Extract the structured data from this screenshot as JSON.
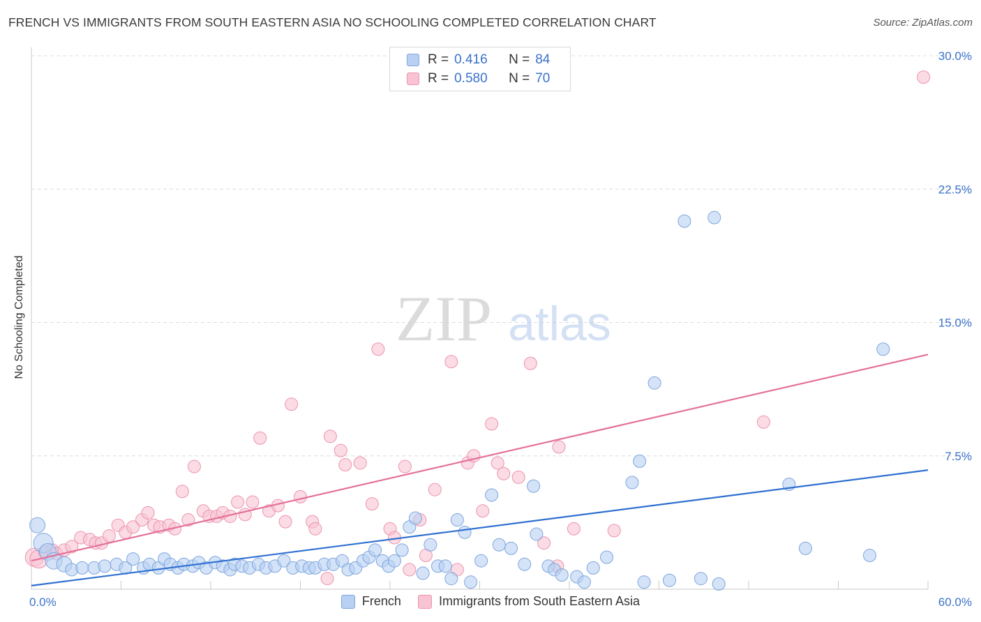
{
  "header": {
    "title": "FRENCH VS IMMIGRANTS FROM SOUTH EASTERN ASIA NO SCHOOLING COMPLETED CORRELATION CHART",
    "source": "Source: ZipAtlas.com"
  },
  "watermark": {
    "zip": "ZIP",
    "atlas": "atlas"
  },
  "legend": {
    "rows": [
      {
        "r_label": "R =",
        "r_value": "0.416",
        "n_label": "N =",
        "n_value": "84"
      },
      {
        "r_label": "R =",
        "r_value": "0.580",
        "n_label": "N =",
        "n_value": "70"
      }
    ]
  },
  "bottom_legend": {
    "series1": "French",
    "series2": "Immigrants from South Eastern Asia"
  },
  "colors": {
    "blue_fill": "#b8d0f2",
    "blue_stroke": "#7ea6de",
    "blue_line": "#2e6fd1",
    "pink_fill": "#f8c3d2",
    "pink_stroke": "#ec93ae",
    "pink_line": "#e4709a",
    "grid": "#dcdcdc",
    "tick_text": "#3a72c9"
  },
  "chart_data": {
    "type": "scatter",
    "title": "FRENCH VS IMMIGRANTS FROM SOUTH EASTERN ASIA NO SCHOOLING COMPLETED CORRELATION CHART",
    "xlabel": "",
    "ylabel": "No Schooling Completed",
    "xlim": [
      0,
      60
    ],
    "ylim": [
      0,
      30
    ],
    "x_tick_labels": [
      "0.0%",
      "60.0%"
    ],
    "y_ticks": [
      7.5,
      15.0,
      22.5,
      30.0
    ],
    "y_tick_labels": [
      "7.5%",
      "15.0%",
      "22.5%",
      "30.0%"
    ],
    "grid": true,
    "series": [
      {
        "name": "French",
        "r": 0.416,
        "n": 84,
        "trend": {
          "x": [
            0,
            60
          ],
          "y": [
            0.2,
            6.7
          ]
        },
        "points": [
          [
            0.4,
            3.6,
            11
          ],
          [
            0.8,
            2.6,
            14
          ],
          [
            1.1,
            2.1,
            12
          ],
          [
            1.5,
            1.6,
            12
          ],
          [
            2.2,
            1.4,
            11
          ],
          [
            2.7,
            1.1,
            9
          ],
          [
            3.4,
            1.2,
            9
          ],
          [
            4.2,
            1.2,
            9
          ],
          [
            4.9,
            1.3,
            9
          ],
          [
            5.7,
            1.4,
            9
          ],
          [
            6.3,
            1.2,
            9
          ],
          [
            6.8,
            1.7,
            9
          ],
          [
            7.5,
            1.2,
            9
          ],
          [
            7.9,
            1.4,
            9
          ],
          [
            8.5,
            1.2,
            9
          ],
          [
            8.9,
            1.7,
            9
          ],
          [
            9.3,
            1.4,
            9
          ],
          [
            9.8,
            1.2,
            9
          ],
          [
            10.2,
            1.4,
            9
          ],
          [
            10.8,
            1.3,
            9
          ],
          [
            11.2,
            1.5,
            9
          ],
          [
            11.7,
            1.2,
            9
          ],
          [
            12.3,
            1.5,
            9
          ],
          [
            12.8,
            1.3,
            9
          ],
          [
            13.3,
            1.1,
            9
          ],
          [
            13.6,
            1.4,
            9
          ],
          [
            14.1,
            1.3,
            9
          ],
          [
            14.6,
            1.2,
            9
          ],
          [
            15.2,
            1.4,
            9
          ],
          [
            15.7,
            1.2,
            9
          ],
          [
            16.3,
            1.3,
            9
          ],
          [
            16.9,
            1.6,
            9
          ],
          [
            17.5,
            1.2,
            9
          ],
          [
            18.1,
            1.3,
            9
          ],
          [
            18.6,
            1.2,
            9
          ],
          [
            19.0,
            1.2,
            9
          ],
          [
            19.6,
            1.4,
            9
          ],
          [
            20.2,
            1.4,
            9
          ],
          [
            20.8,
            1.6,
            9
          ],
          [
            21.2,
            1.1,
            9
          ],
          [
            21.7,
            1.2,
            9
          ],
          [
            22.2,
            1.6,
            9
          ],
          [
            22.6,
            1.8,
            9
          ],
          [
            23.0,
            2.2,
            9
          ],
          [
            23.5,
            1.6,
            9
          ],
          [
            23.9,
            1.3,
            9
          ],
          [
            24.3,
            1.6,
            9
          ],
          [
            24.8,
            2.2,
            9
          ],
          [
            25.3,
            3.5,
            9
          ],
          [
            25.7,
            4.0,
            9
          ],
          [
            26.2,
            0.9,
            9
          ],
          [
            26.7,
            2.5,
            9
          ],
          [
            27.2,
            1.3,
            9
          ],
          [
            27.7,
            1.3,
            9
          ],
          [
            28.1,
            0.6,
            9
          ],
          [
            28.5,
            3.9,
            9
          ],
          [
            29.0,
            3.2,
            9
          ],
          [
            29.4,
            0.4,
            9
          ],
          [
            30.1,
            1.6,
            9
          ],
          [
            30.8,
            5.3,
            9
          ],
          [
            31.3,
            2.5,
            9
          ],
          [
            32.1,
            2.3,
            9
          ],
          [
            33.0,
            1.4,
            9
          ],
          [
            33.6,
            5.8,
            9
          ],
          [
            33.8,
            3.1,
            9
          ],
          [
            34.6,
            1.3,
            9
          ],
          [
            35.0,
            1.1,
            9
          ],
          [
            35.5,
            0.8,
            9
          ],
          [
            36.5,
            0.7,
            9
          ],
          [
            37.0,
            0.4,
            9
          ],
          [
            37.6,
            1.2,
            9
          ],
          [
            41.7,
            11.6,
            9
          ],
          [
            38.5,
            1.8,
            9
          ],
          [
            40.2,
            6.0,
            9
          ],
          [
            40.7,
            7.2,
            9
          ],
          [
            41.0,
            0.4,
            9
          ],
          [
            42.7,
            0.5,
            9
          ],
          [
            43.7,
            20.7,
            9
          ],
          [
            44.8,
            0.6,
            9
          ],
          [
            45.7,
            20.9,
            9
          ],
          [
            46.0,
            0.3,
            9
          ],
          [
            50.7,
            5.9,
            9
          ],
          [
            51.8,
            2.3,
            9
          ],
          [
            56.1,
            1.9,
            9
          ],
          [
            57.0,
            13.5,
            9
          ]
        ]
      },
      {
        "name": "Immigrants from South Eastern Asia",
        "r": 0.58,
        "n": 70,
        "trend": {
          "x": [
            0,
            60
          ],
          "y": [
            1.6,
            13.2
          ]
        },
        "points": [
          [
            0.2,
            1.8,
            13
          ],
          [
            0.5,
            1.7,
            13
          ],
          [
            0.9,
            2.1,
            9
          ],
          [
            1.4,
            2.2,
            9
          ],
          [
            1.7,
            2.0,
            9
          ],
          [
            2.2,
            2.2,
            9
          ],
          [
            2.7,
            2.4,
            9
          ],
          [
            3.3,
            2.9,
            9
          ],
          [
            3.9,
            2.8,
            9
          ],
          [
            4.3,
            2.6,
            9
          ],
          [
            4.7,
            2.6,
            9
          ],
          [
            5.2,
            3.0,
            9
          ],
          [
            5.8,
            3.6,
            9
          ],
          [
            6.3,
            3.2,
            9
          ],
          [
            6.8,
            3.5,
            9
          ],
          [
            7.4,
            3.9,
            9
          ],
          [
            7.8,
            4.3,
            9
          ],
          [
            8.2,
            3.6,
            9
          ],
          [
            8.6,
            3.5,
            9
          ],
          [
            9.2,
            3.6,
            9
          ],
          [
            9.6,
            3.4,
            9
          ],
          [
            10.1,
            5.5,
            9
          ],
          [
            10.5,
            3.9,
            9
          ],
          [
            10.9,
            6.9,
            9
          ],
          [
            11.5,
            4.4,
            9
          ],
          [
            11.9,
            4.1,
            9
          ],
          [
            12.4,
            4.1,
            9
          ],
          [
            12.8,
            4.3,
            9
          ],
          [
            13.3,
            4.1,
            9
          ],
          [
            13.8,
            4.9,
            9
          ],
          [
            14.3,
            4.2,
            9
          ],
          [
            14.8,
            4.9,
            9
          ],
          [
            15.3,
            8.5,
            9
          ],
          [
            15.9,
            4.4,
            9
          ],
          [
            16.5,
            4.7,
            9
          ],
          [
            17.0,
            3.8,
            9
          ],
          [
            17.4,
            10.4,
            9
          ],
          [
            18.0,
            5.2,
            9
          ],
          [
            18.8,
            3.8,
            9
          ],
          [
            19.0,
            3.4,
            9
          ],
          [
            19.8,
            0.6,
            9
          ],
          [
            20.0,
            8.6,
            9
          ],
          [
            20.7,
            7.8,
            9
          ],
          [
            21.0,
            7.0,
            9
          ],
          [
            22.0,
            7.1,
            9
          ],
          [
            22.8,
            4.8,
            9
          ],
          [
            23.2,
            13.5,
            9
          ],
          [
            24.0,
            3.4,
            9
          ],
          [
            24.3,
            2.9,
            9
          ],
          [
            25.0,
            6.9,
            9
          ],
          [
            25.3,
            1.1,
            9
          ],
          [
            26.0,
            3.9,
            9
          ],
          [
            26.4,
            1.9,
            9
          ],
          [
            27.0,
            5.6,
            9
          ],
          [
            28.1,
            12.8,
            9
          ],
          [
            28.5,
            1.1,
            9
          ],
          [
            29.2,
            7.1,
            9
          ],
          [
            29.6,
            7.5,
            9
          ],
          [
            30.2,
            4.4,
            9
          ],
          [
            30.8,
            9.3,
            9
          ],
          [
            31.2,
            7.1,
            9
          ],
          [
            31.6,
            6.5,
            9
          ],
          [
            32.6,
            6.3,
            9
          ],
          [
            33.4,
            12.7,
            9
          ],
          [
            34.3,
            2.6,
            9
          ],
          [
            35.2,
            1.3,
            9
          ],
          [
            35.3,
            8.0,
            9
          ],
          [
            36.3,
            3.4,
            9
          ],
          [
            39.0,
            3.3,
            9
          ],
          [
            49.0,
            9.4,
            9
          ],
          [
            59.7,
            28.8,
            9
          ]
        ]
      }
    ]
  }
}
